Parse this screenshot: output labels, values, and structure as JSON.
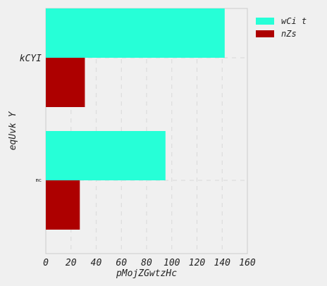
{
  "chart_data": {
    "type": "bar",
    "orientation": "horizontal",
    "categories": [
      "kCYI",
      "mc"
    ],
    "series": [
      {
        "name": "wCi t",
        "color": "#26ffd7",
        "values": [
          142,
          95
        ]
      },
      {
        "name": "nZs",
        "color": "#ad0000",
        "values": [
          31,
          27
        ]
      }
    ],
    "xlabel": "pMojZGwtzHc",
    "ylabel": "eqUvk Y",
    "xlim": [
      0,
      160
    ],
    "xticks": [
      "0",
      "20",
      "40",
      "60",
      "80",
      "100",
      "120",
      "140",
      "160"
    ],
    "grid": true,
    "legend_position": "top-right"
  }
}
